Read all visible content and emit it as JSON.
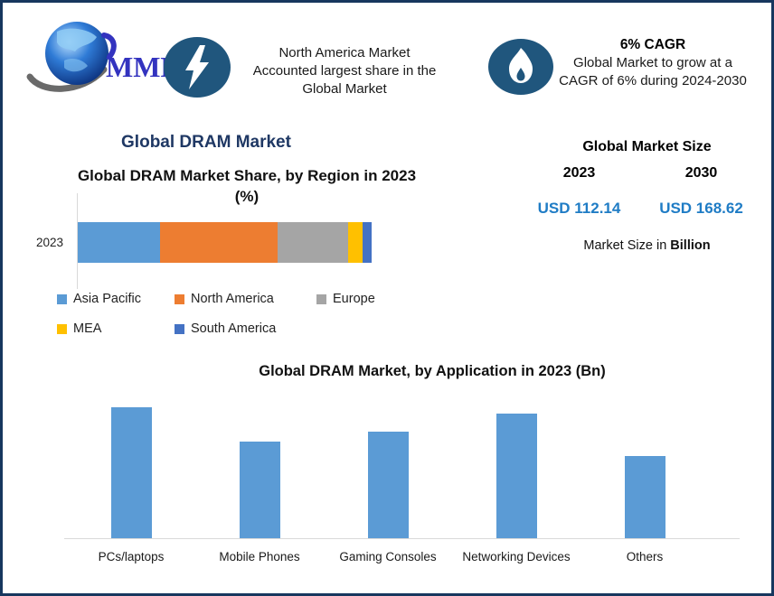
{
  "brand": {
    "logo_text": "MMR"
  },
  "header": {
    "stat1": {
      "icon": "lightning-icon",
      "lines": [
        "North America Market",
        "Accounted largest share in the",
        "Global Market"
      ]
    },
    "stat2": {
      "icon": "flame-icon",
      "headline": "6% CAGR",
      "lines": [
        "Global Market to grow at a",
        "CAGR of 6% during 2024-2030"
      ]
    }
  },
  "left_section": {
    "title": "Global DRAM Market"
  },
  "market_size": {
    "title": "Global Market Size",
    "columns": [
      {
        "year": "2023",
        "value": "USD 112.14"
      },
      {
        "year": "2030",
        "value": "USD 168.62"
      }
    ],
    "footnote_prefix": "Market Size in ",
    "footnote_bold": "Billion"
  },
  "colors": {
    "frame_border": "#17375E",
    "dram_title_navy": "#1F3864",
    "value_blue": "#1F7CC5",
    "icon_ellipse_blue": "#20567D",
    "bar_blue": "#5B9BD5",
    "axis_gray": "#D9D9D9"
  },
  "chart_data": [
    {
      "type": "bar",
      "subtype": "horizontal-stacked",
      "title": "Global DRAM Market Share, by Region in 2023 (%)",
      "categories": [
        "2023"
      ],
      "series": [
        {
          "name": "Asia Pacific",
          "color": "#5B9BD5",
          "values": [
            28
          ]
        },
        {
          "name": "North America",
          "color": "#ED7D31",
          "values": [
            40
          ]
        },
        {
          "name": "Europe",
          "color": "#A5A5A5",
          "values": [
            24
          ]
        },
        {
          "name": "MEA",
          "color": "#FFC000",
          "values": [
            5
          ]
        },
        {
          "name": "South America",
          "color": "#4472C4",
          "values": [
            3
          ]
        }
      ],
      "xlim": [
        0,
        100
      ],
      "grid": false,
      "legend_position": "bottom"
    },
    {
      "type": "bar",
      "title": "Global DRAM Market, by Application in 2023 (Bn)",
      "categories": [
        "PCs/laptops",
        "Mobile Phones",
        "Gaming Consoles",
        "Networking Devices",
        "Others"
      ],
      "values": [
        27.2,
        20.0,
        22.1,
        25.9,
        17.0
      ],
      "xlabel": "",
      "ylabel": "",
      "ylim": [
        0,
        30
      ],
      "bar_color": "#5B9BD5",
      "grid": false,
      "legend_position": "none"
    }
  ]
}
